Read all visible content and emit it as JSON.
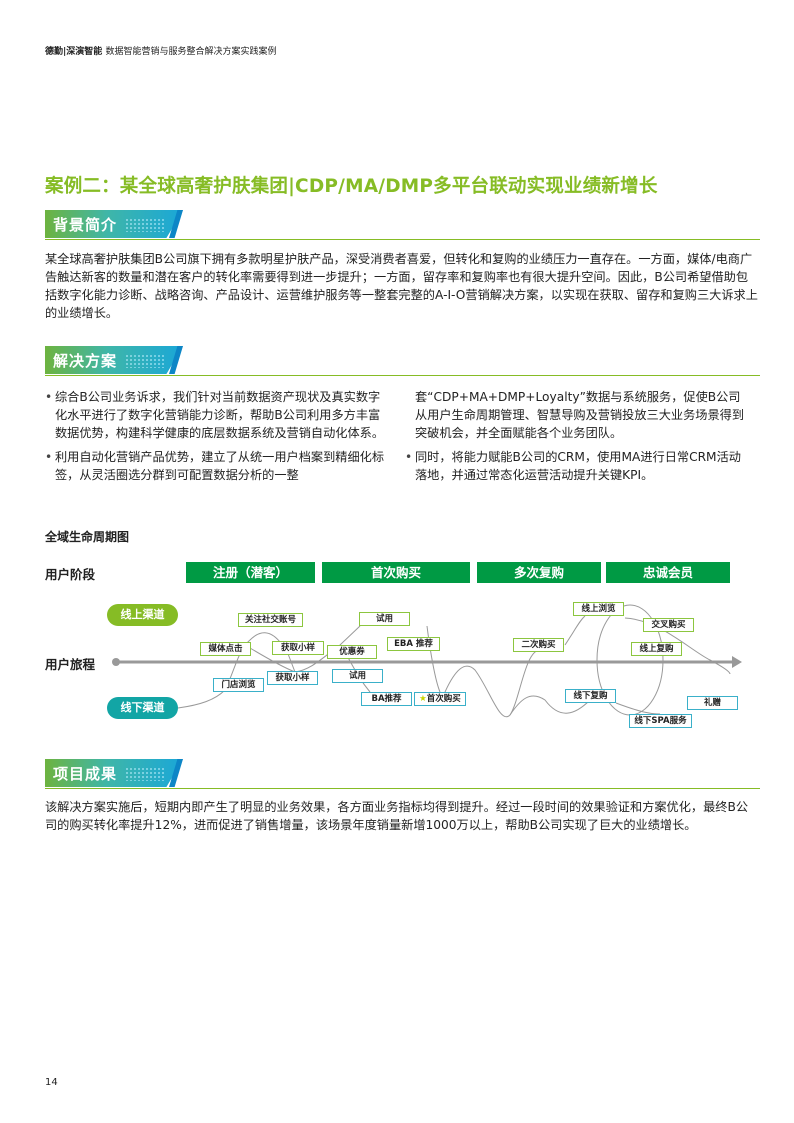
{
  "header": {
    "brand": "德勤|深演智能",
    "subtitle": "数据智能营销与服务整合解决方案实践案例"
  },
  "title": "案例二：某全球高奢护肤集团|CDP/MA/DMP多平台联动实现业绩新增长",
  "sections": {
    "background": {
      "label": "背景简介",
      "text": "某全球高奢护肤集团B公司旗下拥有多款明星护肤产品，深受消费者喜爱，但转化和复购的业绩压力一直存在。一方面，媒体/电商广告触达新客的数量和潜在客户的转化率需要得到进一步提升；一方面，留存率和复购率也有很大提升空间。因此，B公司希望借助包括数字化能力诊断、战略咨询、产品设计、运营维护服务等一整套完整的A-I-O营销解决方案，以实现在获取、留存和复购三大诉求上的业绩增长。"
    },
    "solution": {
      "label": "解决方案",
      "bullets": [
        "综合B公司业务诉求，我们针对当前数据资产现状及真实数字化水平进行了数字化营销能力诊断，帮助B公司利用多方丰富数据优势，构建科学健康的底层数据系统及营销自动化体系。",
        "利用自动化营销产品优势，建立了从统一用户档案到精细化标签，从灵活圈选分群到可配置数据分析的一整",
        "套“CDP+MA+DMP+Loyalty”数据与系统服务，促使B公司从用户生命周期管理、智慧导购及营销投放三大业务场景得到突破机会，并全面赋能各个业务团队。",
        "同时，将能力赋能B公司的CRM，使用MA进行日常CRM活动落地，并通过常态化运营活动提升关键KPI。"
      ]
    },
    "result": {
      "label": "项目成果",
      "text": "该解决方案实施后，短期内即产生了明显的业务效果，各方面业务指标均得到提升。经过一段时间的效果验证和方案优化，最终B公司的购买转化率提升12%，进而促进了销售增量，该场景年度销量新增1000万以上，帮助B公司实现了巨大的业绩增长。"
    }
  },
  "diagram": {
    "title": "全域生命周期图",
    "stage_label": "用户阶段",
    "journey_label": "用户旅程",
    "stages": [
      "注册（潜客）",
      "首次购买",
      "多次复购",
      "忠诚会员"
    ],
    "online": "线上渠道",
    "offline": "线下渠道",
    "touchpoints": [
      "关注社交账号",
      "媒体点击",
      "获取小样",
      "优惠券",
      "试用",
      "EBA 推荐",
      "门店浏览",
      "获取小样",
      "试用",
      "BA推荐",
      "首次购买",
      "二次购买",
      "线上浏览",
      "交叉购买",
      "线上复购",
      "线下复购",
      "线下SPA服务",
      "礼赠"
    ],
    "colors": {
      "stage": "#009a44",
      "online": "#86bc25",
      "offline": "#12a5a5"
    }
  },
  "page_number": "14"
}
